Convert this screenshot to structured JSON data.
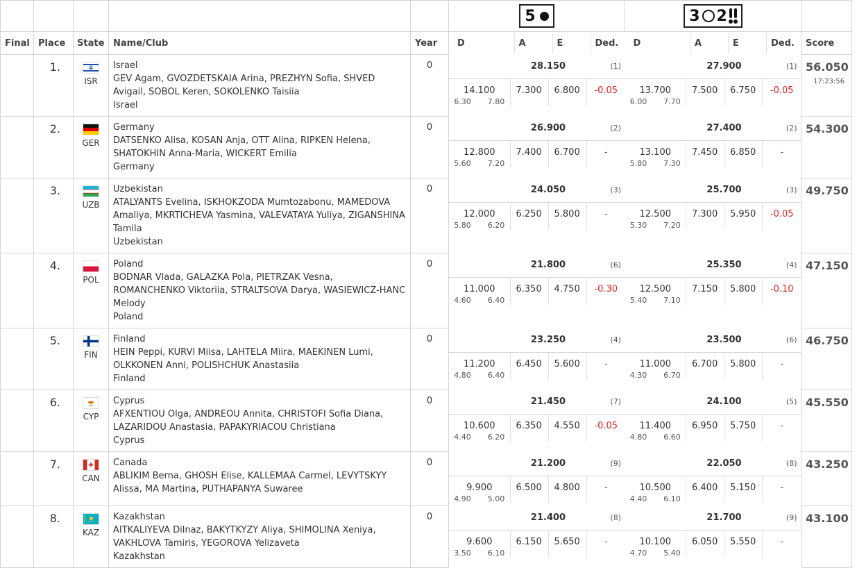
{
  "apparatus": [
    {
      "label": "5",
      "icon": "ball-icon"
    },
    {
      "label": "3",
      "icon": "hoop-icon",
      "label2": "2",
      "icon2": "clubs-icon"
    }
  ],
  "headers": {
    "final": "Final",
    "place": "Place",
    "state": "State",
    "name": "Name/Club",
    "year": "Year",
    "d": "D",
    "a": "A",
    "e": "E",
    "ded": "Ded.",
    "score": "Score"
  },
  "rows": [
    {
      "place": "1.",
      "code": "ISR",
      "flag": "israel",
      "club": "Israel",
      "members": "GEV Agam, GVOZDETSKAIA Arina, PREZHYN Sofia, SHVED Avigail, SOBOL Keren, SOKOLENKO Taisiia",
      "club2": "Israel",
      "year": "0",
      "a1": {
        "total": "28.150",
        "rank": "(1)",
        "d": "14.100",
        "d1": "6.30",
        "d2": "7.80",
        "a": "7.300",
        "e": "6.800",
        "ded": "-0.05"
      },
      "a2": {
        "total": "27.900",
        "rank": "(1)",
        "d": "13.700",
        "d1": "6.00",
        "d2": "7.70",
        "a": "7.500",
        "e": "6.750",
        "ded": "-0.05"
      },
      "score": "56.050",
      "time": "17:23:56"
    },
    {
      "place": "2.",
      "code": "GER",
      "flag": "germany",
      "club": "Germany",
      "members": "DATSENKO Alisa, KOSAN Anja, OTT Alina, RIPKEN Helena, SHATOKHIN Anna-Maria, WICKERT Emilia",
      "club2": "Germany",
      "year": "0",
      "a1": {
        "total": "26.900",
        "rank": "(2)",
        "d": "12.800",
        "d1": "5.60",
        "d2": "7.20",
        "a": "7.400",
        "e": "6.700",
        "ded": "-"
      },
      "a2": {
        "total": "27.400",
        "rank": "(2)",
        "d": "13.100",
        "d1": "5.80",
        "d2": "7.30",
        "a": "7.450",
        "e": "6.850",
        "ded": "-"
      },
      "score": "54.300",
      "time": ""
    },
    {
      "place": "3.",
      "code": "UZB",
      "flag": "uzbekistan",
      "club": "Uzbekistan",
      "members": "ATALYANTS Evelina, ISKHOKZODA Mumtozabonu, MAMEDOVA Amaliya, MKRTICHEVA Yasmina, VALEVATAYA Yuliya, ZIGANSHINA Tamila",
      "club2": "Uzbekistan",
      "year": "0",
      "a1": {
        "total": "24.050",
        "rank": "(3)",
        "d": "12.000",
        "d1": "5.80",
        "d2": "6.20",
        "a": "6.250",
        "e": "5.800",
        "ded": "-"
      },
      "a2": {
        "total": "25.700",
        "rank": "(3)",
        "d": "12.500",
        "d1": "5.30",
        "d2": "7.20",
        "a": "7.300",
        "e": "5.950",
        "ded": "-0.05"
      },
      "score": "49.750",
      "time": ""
    },
    {
      "place": "4.",
      "code": "POL",
      "flag": "poland",
      "club": "Poland",
      "members": "BODNAR Vlada, GALAZKA Pola, PIETRZAK Vesna, ROMANCHENKO Viktoriia, STRALTSOVA Darya, WASIEWICZ-HANC Melody",
      "club2": "Poland",
      "year": "0",
      "a1": {
        "total": "21.800",
        "rank": "(6)",
        "d": "11.000",
        "d1": "4.60",
        "d2": "6.40",
        "a": "6.350",
        "e": "4.750",
        "ded": "-0.30"
      },
      "a2": {
        "total": "25.350",
        "rank": "(4)",
        "d": "12.500",
        "d1": "5.40",
        "d2": "7.10",
        "a": "7.150",
        "e": "5.800",
        "ded": "-0.10"
      },
      "score": "47.150",
      "time": ""
    },
    {
      "place": "5.",
      "code": "FIN",
      "flag": "finland",
      "club": "Finland",
      "members": "HEIN Peppi, KURVI Miisa, LAHTELA Miira, MAEKINEN Lumi, OLKKONEN Anni, POLISHCHUK Anastasiia",
      "club2": "Finland",
      "year": "0",
      "a1": {
        "total": "23.250",
        "rank": "(4)",
        "d": "11.200",
        "d1": "4.80",
        "d2": "6.40",
        "a": "6.450",
        "e": "5.600",
        "ded": "-"
      },
      "a2": {
        "total": "23.500",
        "rank": "(6)",
        "d": "11.000",
        "d1": "4.30",
        "d2": "6.70",
        "a": "6.700",
        "e": "5.800",
        "ded": "-"
      },
      "score": "46.750",
      "time": ""
    },
    {
      "place": "6.",
      "code": "CYP",
      "flag": "cyprus",
      "club": "Cyprus",
      "members": "AFXENTIOU Olga, ANDREOU Annita, CHRISTOFI Sofia Diana, LAZARIDOU Anastasia, PAPAKYRIACOU Christiana",
      "club2": "Cyprus",
      "year": "0",
      "a1": {
        "total": "21.450",
        "rank": "(7)",
        "d": "10.600",
        "d1": "4.40",
        "d2": "6.20",
        "a": "6.350",
        "e": "4.550",
        "ded": "-0.05"
      },
      "a2": {
        "total": "24.100",
        "rank": "(5)",
        "d": "11.400",
        "d1": "4.80",
        "d2": "6.60",
        "a": "6.950",
        "e": "5.750",
        "ded": "-"
      },
      "score": "45.550",
      "time": ""
    },
    {
      "place": "7.",
      "code": "CAN",
      "flag": "canada",
      "club": "Canada",
      "members": "ABLIKIM Berna, GHOSH Elise, KALLEMAA Carmel, LEVYTSKYY Alissa, MA Martina, PUTHAPANYA Suwaree",
      "club2": "",
      "year": "0",
      "a1": {
        "total": "21.200",
        "rank": "(9)",
        "d": "9.900",
        "d1": "4.90",
        "d2": "5.00",
        "a": "6.500",
        "e": "4.800",
        "ded": "-"
      },
      "a2": {
        "total": "22.050",
        "rank": "(8)",
        "d": "10.500",
        "d1": "4.40",
        "d2": "6.10",
        "a": "6.400",
        "e": "5.150",
        "ded": "-"
      },
      "score": "43.250",
      "time": ""
    },
    {
      "place": "8.",
      "code": "KAZ",
      "flag": "kazakhstan",
      "club": "Kazakhstan",
      "members": "AITKALIYEVA Dilnaz, BAKYTKYZY Aliya, SHIMOLINA Xeniya, VAKHLOVA Tamiris, YEGOROVA Yelizaveta",
      "club2": "Kazakhstan",
      "year": "0",
      "a1": {
        "total": "21.400",
        "rank": "(8)",
        "d": "9.600",
        "d1": "3.50",
        "d2": "6.10",
        "a": "6.150",
        "e": "5.650",
        "ded": "-"
      },
      "a2": {
        "total": "21.700",
        "rank": "(9)",
        "d": "10.100",
        "d1": "4.70",
        "d2": "5.40",
        "a": "6.050",
        "e": "5.550",
        "ded": "-"
      },
      "score": "43.100",
      "time": ""
    }
  ]
}
